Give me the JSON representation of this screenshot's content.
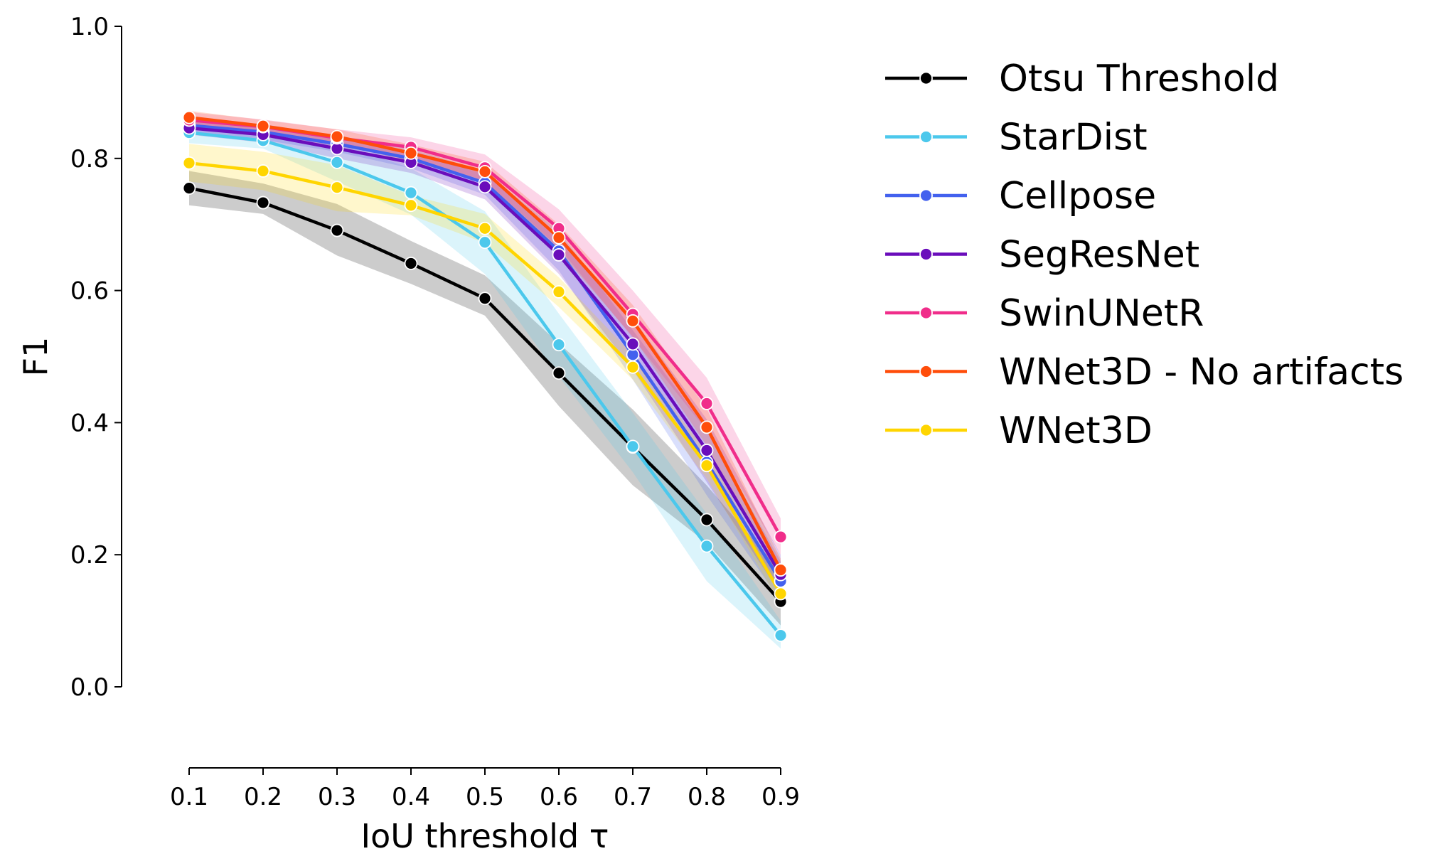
{
  "chart_data": {
    "type": "line",
    "xlabel": "IoU threshold τ",
    "ylabel": "F1",
    "xlim": [
      0.1,
      0.9
    ],
    "ylim": [
      0.0,
      1.0
    ],
    "x": [
      0.1,
      0.2,
      0.3,
      0.4,
      0.5,
      0.6,
      0.7,
      0.8,
      0.9
    ],
    "x_tick_labels": [
      "0.1",
      "0.2",
      "0.3",
      "0.4",
      "0.5",
      "0.6",
      "0.7",
      "0.8",
      "0.9"
    ],
    "y_ticks": [
      0.0,
      0.2,
      0.4,
      0.6,
      0.8,
      1.0
    ],
    "y_tick_labels": [
      "0.0",
      "0.2",
      "0.4",
      "0.6",
      "0.8",
      "1.0"
    ],
    "grid": false,
    "legend_position": "outside-right-top",
    "series": [
      {
        "name": "Otsu Threshold",
        "color": "#000000",
        "values": [
          0.755,
          0.733,
          0.691,
          0.641,
          0.588,
          0.475,
          0.363,
          0.253,
          0.129
        ],
        "lower": [
          0.729,
          0.716,
          0.653,
          0.61,
          0.562,
          0.425,
          0.305,
          0.218,
          0.093
        ],
        "upper": [
          0.781,
          0.762,
          0.731,
          0.675,
          0.623,
          0.52,
          0.42,
          0.305,
          0.175
        ]
      },
      {
        "name": "StarDist",
        "color": "#4cc8ec",
        "values": [
          0.839,
          0.827,
          0.794,
          0.748,
          0.673,
          0.518,
          0.364,
          0.213,
          0.078
        ],
        "lower": [
          0.823,
          0.815,
          0.765,
          0.715,
          0.625,
          0.47,
          0.325,
          0.16,
          0.058
        ],
        "upper": [
          0.853,
          0.84,
          0.824,
          0.785,
          0.72,
          0.565,
          0.415,
          0.262,
          0.1
        ]
      },
      {
        "name": "Cellpose",
        "color": "#4361ee",
        "values": [
          0.85,
          0.84,
          0.822,
          0.8,
          0.763,
          0.66,
          0.503,
          0.34,
          0.16
        ],
        "lower": [
          0.84,
          0.828,
          0.81,
          0.785,
          0.745,
          0.63,
          0.465,
          0.29,
          0.13
        ],
        "upper": [
          0.86,
          0.852,
          0.834,
          0.815,
          0.78,
          0.69,
          0.54,
          0.39,
          0.19
        ]
      },
      {
        "name": "SegResNet",
        "color": "#6a0dbb",
        "values": [
          0.846,
          0.836,
          0.815,
          0.794,
          0.757,
          0.654,
          0.519,
          0.358,
          0.17
        ],
        "lower": [
          0.836,
          0.824,
          0.8,
          0.778,
          0.738,
          0.625,
          0.48,
          0.31,
          0.14
        ],
        "upper": [
          0.856,
          0.848,
          0.83,
          0.81,
          0.776,
          0.683,
          0.558,
          0.405,
          0.2
        ]
      },
      {
        "name": "SwinUNetR",
        "color": "#f02d8a",
        "values": [
          0.858,
          0.848,
          0.831,
          0.817,
          0.786,
          0.694,
          0.564,
          0.429,
          0.227
        ],
        "lower": [
          0.846,
          0.837,
          0.818,
          0.802,
          0.766,
          0.665,
          0.528,
          0.388,
          0.2
        ],
        "upper": [
          0.87,
          0.859,
          0.844,
          0.832,
          0.806,
          0.723,
          0.6,
          0.468,
          0.255
        ]
      },
      {
        "name": "WNet3D - No artifacts",
        "color": "#ff4d0a",
        "values": [
          0.862,
          0.849,
          0.833,
          0.808,
          0.78,
          0.68,
          0.554,
          0.393,
          0.177
        ],
        "lower": [
          0.852,
          0.84,
          0.822,
          0.795,
          0.765,
          0.66,
          0.53,
          0.365,
          0.16
        ],
        "upper": [
          0.872,
          0.858,
          0.844,
          0.821,
          0.795,
          0.7,
          0.578,
          0.421,
          0.194
        ]
      },
      {
        "name": "WNet3D",
        "color": "#ffd500",
        "values": [
          0.793,
          0.781,
          0.756,
          0.729,
          0.694,
          0.598,
          0.484,
          0.335,
          0.141
        ],
        "lower": [
          0.765,
          0.752,
          0.72,
          0.714,
          0.672,
          0.575,
          0.465,
          0.315,
          0.125
        ],
        "upper": [
          0.822,
          0.81,
          0.79,
          0.744,
          0.716,
          0.62,
          0.503,
          0.355,
          0.157
        ]
      }
    ]
  }
}
